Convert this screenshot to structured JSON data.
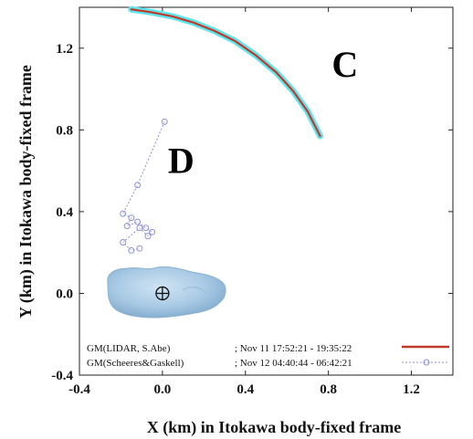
{
  "chart_data": {
    "type": "line",
    "title": "",
    "xlabel": "X (km) in Itokawa body-fixed frame",
    "ylabel": "Y (km) in Itokawa body-fixed frame",
    "xlim": [
      -0.4,
      1.4
    ],
    "ylim": [
      -0.4,
      1.4
    ],
    "xticks": [
      -0.4,
      0.0,
      0.4,
      0.8,
      1.2
    ],
    "xtick_labels": [
      "-0.4",
      "0.0",
      "0.4",
      "0.8",
      "1.2"
    ],
    "yticks": [
      -0.4,
      0.0,
      0.4,
      0.8,
      1.2
    ],
    "ytick_labels": [
      "-0.4",
      "0.0",
      "0.4",
      "0.8",
      "1.2"
    ],
    "grid": false,
    "legend_position": "bottom-right",
    "annotations": [
      {
        "text": "C",
        "x": 0.88,
        "y": 1.06
      },
      {
        "text": "D",
        "x": 0.09,
        "y": 0.59
      }
    ],
    "series": [
      {
        "name": "GM(LIDAR, S.Abe)",
        "time_range": "; Nov 11 17:52:21 - 19:35:22",
        "color": "#c0392b",
        "halo_color": "#5fe6ec",
        "style": "solid",
        "x": [
          -0.15,
          -0.05,
          0.05,
          0.15,
          0.25,
          0.35,
          0.45,
          0.55,
          0.63,
          0.7,
          0.76
        ],
        "y": [
          1.39,
          1.375,
          1.355,
          1.325,
          1.285,
          1.235,
          1.165,
          1.08,
          0.99,
          0.89,
          0.77
        ]
      },
      {
        "name": "GM(Scheeres&Gaskell)",
        "time_range": "; Nov 12 04:40:44 - 06:42:21",
        "color": "#8a90d4",
        "style": "dotted-circles",
        "x": [
          0.01,
          -0.12,
          -0.19,
          -0.15,
          -0.17,
          -0.12,
          -0.08,
          -0.05,
          -0.07,
          -0.11,
          -0.19,
          -0.15,
          -0.11
        ],
        "y": [
          0.84,
          0.53,
          0.39,
          0.37,
          0.33,
          0.35,
          0.32,
          0.3,
          0.28,
          0.32,
          0.25,
          0.21,
          0.22
        ]
      }
    ],
    "body_marker": {
      "name": "Itokawa",
      "x": 0.0,
      "y": 0.0
    }
  }
}
